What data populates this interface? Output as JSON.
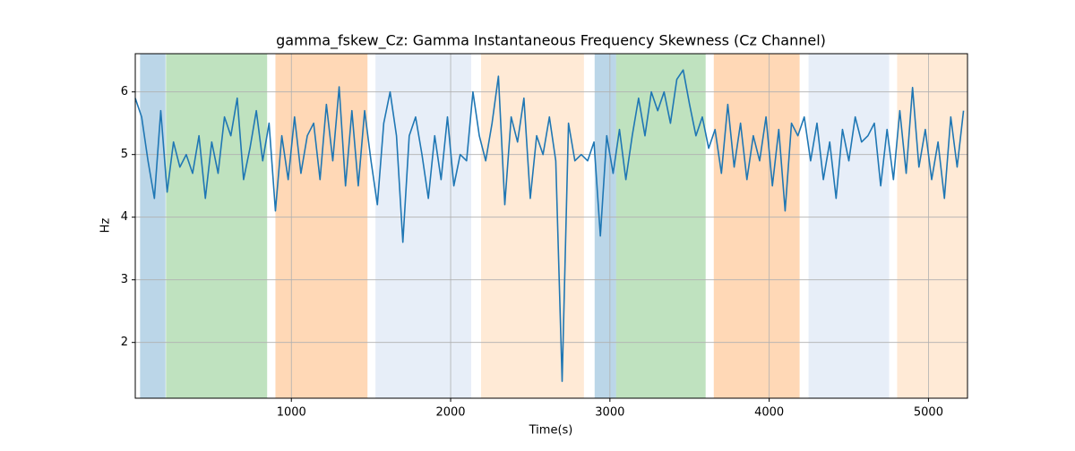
{
  "chart_data": {
    "type": "line",
    "title": "gamma_fskew_Cz: Gamma Instantaneous Frequency Skewness (Cz Channel)",
    "xlabel": "Time(s)",
    "ylabel": "Hz",
    "x": [
      20,
      60,
      100,
      140,
      180,
      220,
      260,
      300,
      340,
      380,
      420,
      460,
      500,
      540,
      580,
      620,
      660,
      700,
      740,
      780,
      820,
      860,
      900,
      940,
      980,
      1020,
      1060,
      1100,
      1140,
      1180,
      1220,
      1260,
      1300,
      1340,
      1380,
      1420,
      1460,
      1500,
      1540,
      1580,
      1620,
      1660,
      1700,
      1740,
      1780,
      1820,
      1860,
      1900,
      1940,
      1980,
      2020,
      2060,
      2100,
      2140,
      2180,
      2220,
      2260,
      2300,
      2340,
      2380,
      2420,
      2460,
      2500,
      2540,
      2580,
      2620,
      2660,
      2700,
      2740,
      2780,
      2820,
      2860,
      2900,
      2940,
      2980,
      3020,
      3060,
      3100,
      3140,
      3180,
      3220,
      3260,
      3300,
      3340,
      3380,
      3420,
      3460,
      3500,
      3540,
      3580,
      3620,
      3660,
      3700,
      3740,
      3780,
      3820,
      3860,
      3900,
      3940,
      3980,
      4020,
      4060,
      4100,
      4140,
      4180,
      4220,
      4260,
      4300,
      4340,
      4380,
      4420,
      4460,
      4500,
      4540,
      4580,
      4620,
      4660,
      4700,
      4740,
      4780,
      4820,
      4860,
      4900,
      4940,
      4980,
      5020,
      5060,
      5100,
      5140,
      5180,
      5220
    ],
    "series": [
      {
        "color": "#1f77b4",
        "values": [
          5.9,
          5.6,
          4.9,
          4.3,
          5.7,
          4.4,
          5.2,
          4.8,
          5.0,
          4.7,
          5.3,
          4.3,
          5.2,
          4.7,
          5.6,
          5.3,
          5.9,
          4.6,
          5.1,
          5.7,
          4.9,
          5.5,
          4.1,
          5.3,
          4.6,
          5.6,
          4.7,
          5.3,
          5.5,
          4.6,
          5.8,
          4.9,
          6.08,
          4.5,
          5.7,
          4.5,
          5.7,
          4.9,
          4.2,
          5.5,
          6.0,
          5.3,
          3.6,
          5.3,
          5.6,
          5.0,
          4.3,
          5.3,
          4.6,
          5.6,
          4.5,
          5.0,
          4.9,
          6.0,
          5.3,
          4.9,
          5.5,
          6.25,
          4.2,
          5.6,
          5.2,
          5.9,
          4.3,
          5.3,
          5.0,
          5.6,
          4.9,
          1.38,
          5.5,
          4.9,
          5.0,
          4.9,
          5.2,
          3.7,
          5.3,
          4.7,
          5.4,
          4.6,
          5.3,
          5.9,
          5.3,
          6.0,
          5.7,
          6.0,
          5.5,
          6.2,
          6.35,
          5.8,
          5.3,
          5.6,
          5.1,
          5.4,
          4.7,
          5.8,
          4.8,
          5.5,
          4.6,
          5.3,
          4.9,
          5.6,
          4.5,
          5.4,
          4.1,
          5.5,
          5.3,
          5.6,
          4.9,
          5.5,
          4.6,
          5.2,
          4.3,
          5.4,
          4.9,
          5.6,
          5.2,
          5.3,
          5.5,
          4.5,
          5.4,
          4.6,
          5.7,
          4.7,
          6.07,
          4.8,
          5.4,
          4.6,
          5.2,
          4.3,
          5.6,
          4.8,
          5.7
        ]
      }
    ],
    "spans": [
      {
        "x0": 50,
        "x1": 210,
        "color": "#1f77b4"
      },
      {
        "x0": 213,
        "x1": 848,
        "color": "#2ca02c"
      },
      {
        "x0": 900,
        "x1": 1478,
        "color": "#ff7f0e"
      },
      {
        "x0": 1528,
        "x1": 2129,
        "color": "#aec7e8"
      },
      {
        "x0": 2191,
        "x1": 2837,
        "color": "#ffbb78"
      },
      {
        "x0": 2904,
        "x1": 3039,
        "color": "#1f77b4"
      },
      {
        "x0": 3039,
        "x1": 3601,
        "color": "#2ca02c"
      },
      {
        "x0": 3652,
        "x1": 4191,
        "color": "#ff7f0e"
      },
      {
        "x0": 4247,
        "x1": 4753,
        "color": "#aec7e8"
      },
      {
        "x0": 4803,
        "x1": 5242,
        "color": "#ffbb78"
      }
    ],
    "xlim": [
      20,
      5245
    ],
    "ylim": [
      1.11,
      6.61
    ],
    "xticks": [
      1000,
      2000,
      3000,
      4000,
      5000
    ],
    "yticks": [
      2,
      3,
      4,
      5,
      6
    ],
    "grid": true
  }
}
